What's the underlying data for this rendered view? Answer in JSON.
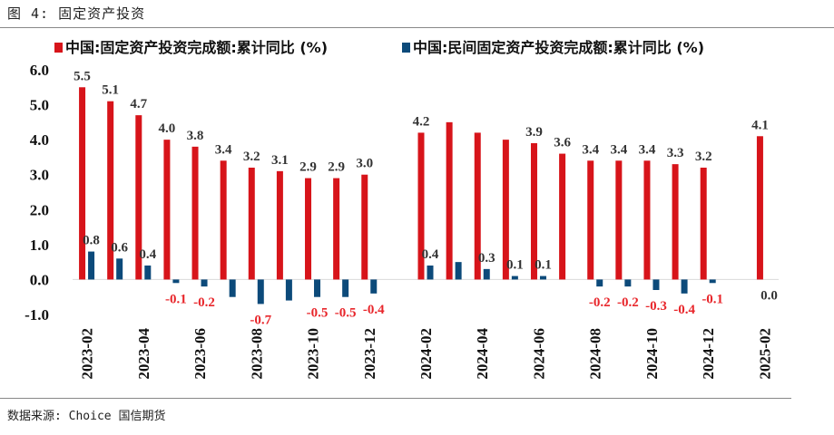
{
  "title": "图 4: 固定资产投资",
  "source": "数据来源: Choice   国信期货",
  "colors": {
    "series1": "#d7141a",
    "series2": "#0c4a7a",
    "negative_label": "#e8262b",
    "positive_label": "#333333"
  },
  "chart_data": {
    "type": "bar",
    "ylim": [
      -1.0,
      6.0
    ],
    "yticks": [
      "6.0",
      "5.0",
      "4.0",
      "3.0",
      "2.0",
      "1.0",
      "0.0",
      "-1.0"
    ],
    "grid": false,
    "legend_position": "top",
    "categories": [
      "2023-02",
      "2023-03",
      "2023-04",
      "2023-05",
      "2023-06",
      "2023-07",
      "2023-08",
      "2023-09",
      "2023-10",
      "2023-11",
      "2023-12",
      "2024-01",
      "2024-02",
      "2024-03",
      "2024-04",
      "2024-05",
      "2024-06",
      "2024-07",
      "2024-08",
      "2024-09",
      "2024-10",
      "2024-11",
      "2024-12",
      "2025-01",
      "2025-02"
    ],
    "xtick_labels": [
      "2023-02",
      "2023-04",
      "2023-06",
      "2023-08",
      "2023-10",
      "2023-12",
      "2024-02",
      "2024-04",
      "2024-06",
      "2024-08",
      "2024-10",
      "2024-12",
      "2025-02"
    ],
    "series": [
      {
        "name": "中国:固定资产投资完成额:累计同比 (%)",
        "values": [
          5.5,
          5.1,
          4.7,
          4.0,
          3.8,
          3.4,
          3.2,
          3.1,
          2.9,
          2.9,
          3.0,
          null,
          4.2,
          4.5,
          4.2,
          4.0,
          3.9,
          3.6,
          3.4,
          3.4,
          3.4,
          3.3,
          3.2,
          null,
          4.1
        ],
        "labels": [
          "5.5",
          "5.1",
          "4.7",
          "4.0",
          "3.8",
          "3.4",
          "3.2",
          "3.1",
          "2.9",
          "2.9",
          "3.0",
          "",
          "4.2",
          "",
          "",
          "",
          "3.9",
          "3.6",
          "3.4",
          "3.4",
          "3.4",
          "3.3",
          "3.2",
          "",
          "4.1"
        ]
      },
      {
        "name": "中国:民间固定资产投资完成额:累计同比 (%)",
        "values": [
          0.8,
          0.6,
          0.4,
          -0.1,
          -0.2,
          -0.5,
          -0.7,
          -0.6,
          -0.5,
          -0.5,
          -0.4,
          null,
          0.4,
          0.5,
          0.3,
          0.1,
          0.1,
          0.0,
          -0.2,
          -0.2,
          -0.3,
          -0.4,
          -0.1,
          null,
          0.0
        ],
        "labels": [
          "0.8",
          "0.6",
          "0.4",
          "-0.1",
          "-0.2",
          "",
          "-0.7",
          "",
          "-0.5",
          "-0.5",
          "-0.4",
          "",
          "0.4",
          "",
          "0.3",
          "0.1",
          "0.1",
          "",
          "-0.2",
          "-0.2",
          "-0.3",
          "-0.4",
          "-0.1",
          "",
          "0.0"
        ]
      }
    ]
  }
}
